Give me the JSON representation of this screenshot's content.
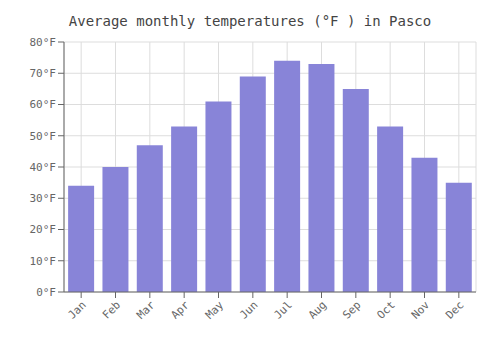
{
  "chart_data": {
    "type": "bar",
    "title": "Average monthly temperatures (°F ) in Pasco",
    "categories": [
      "Jan",
      "Feb",
      "Mar",
      "Apr",
      "May",
      "Jun",
      "Jul",
      "Aug",
      "Sep",
      "Oct",
      "Nov",
      "Dec"
    ],
    "values": [
      34,
      40,
      47,
      53,
      61,
      69,
      74,
      73,
      65,
      53,
      43,
      35
    ],
    "ylim": [
      0,
      80
    ],
    "yticks": [
      {
        "value": 0,
        "label": "0°F"
      },
      {
        "value": 10,
        "label": "10°F"
      },
      {
        "value": 20,
        "label": "20°F"
      },
      {
        "value": 30,
        "label": "30°F"
      },
      {
        "value": 40,
        "label": "40°F"
      },
      {
        "value": 50,
        "label": "50°F"
      },
      {
        "value": 60,
        "label": "60°F"
      },
      {
        "value": 70,
        "label": "70°F"
      },
      {
        "value": 80,
        "label": "80°F"
      }
    ],
    "grid": true
  }
}
